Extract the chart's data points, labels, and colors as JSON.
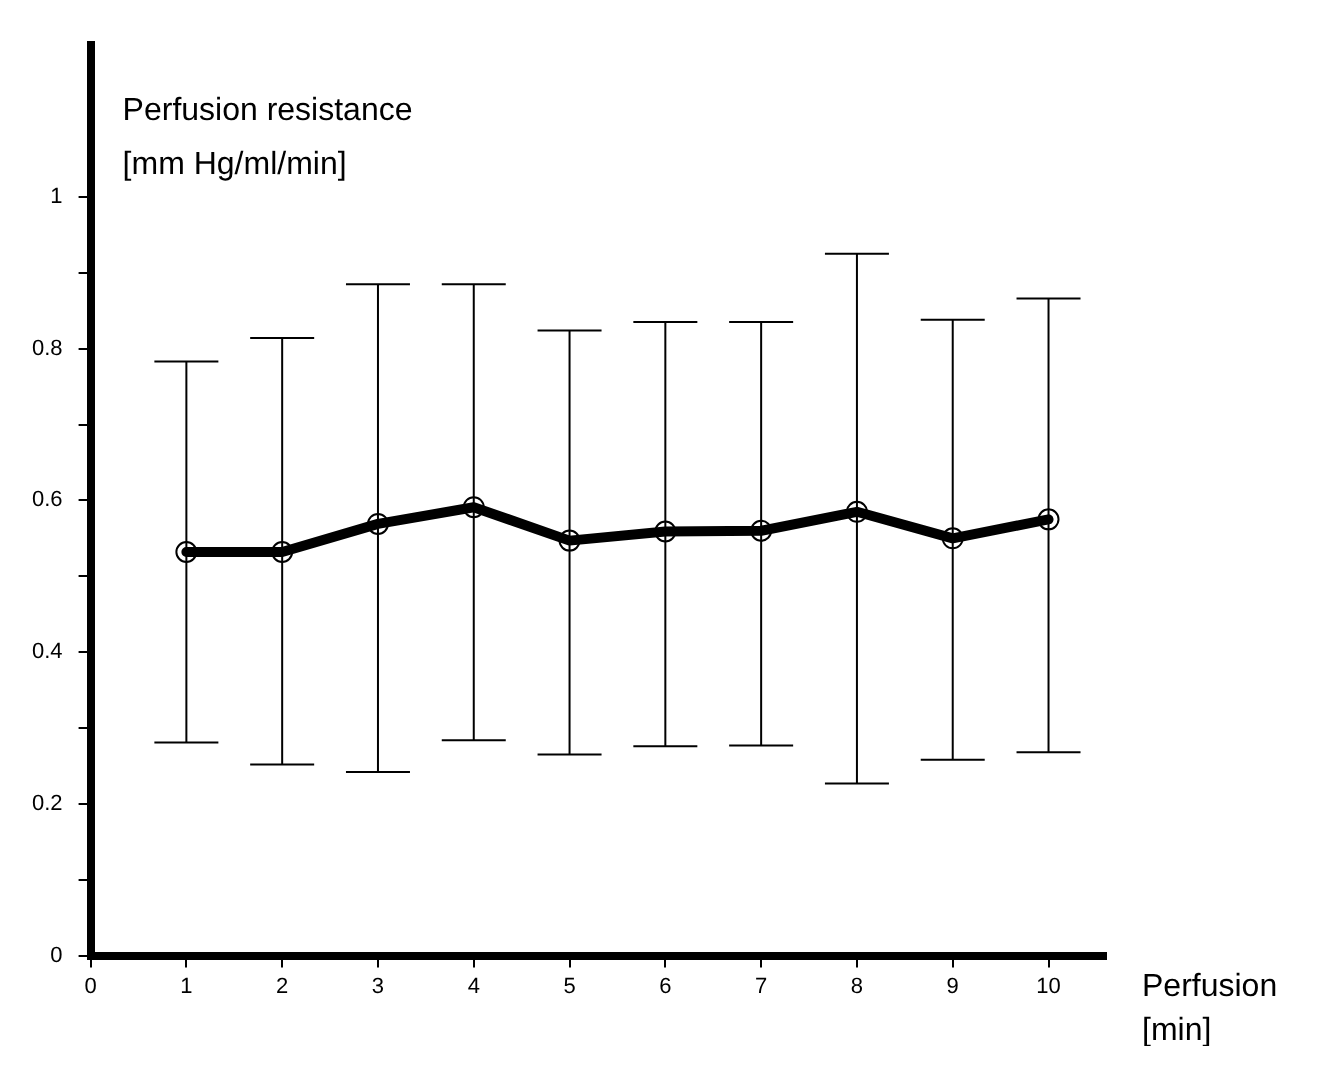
{
  "chart_data": {
    "type": "line",
    "xlabel": "Perfusion\n[min]",
    "ylabel": "Perfusion resistance\n[mm Hg/ml/min]",
    "x": [
      1,
      2,
      3,
      4,
      5,
      6,
      7,
      8,
      9,
      10
    ],
    "series": [
      {
        "color": "#000000",
        "values": [
          0.532,
          0.532,
          0.569,
          0.591,
          0.547,
          0.559,
          0.56,
          0.585,
          0.55,
          0.575
        ],
        "errors": [
          [
            0.281,
            0.783
          ],
          [
            0.252,
            0.814
          ],
          [
            0.242,
            0.885
          ],
          [
            0.284,
            0.885
          ],
          [
            0.265,
            0.824
          ],
          [
            0.276,
            0.835
          ],
          [
            0.277,
            0.835
          ],
          [
            0.227,
            0.925
          ],
          [
            0.258,
            0.838
          ],
          [
            0.268,
            0.866
          ]
        ]
      }
    ],
    "xlim": [
      0,
      10.6
    ],
    "xticks": [
      0,
      1,
      2,
      3,
      4,
      5,
      6,
      7,
      8,
      9,
      10
    ],
    "ylim": [
      0,
      1.2
    ],
    "yticks": [
      0,
      {
        "value": 0.1,
        "label": null
      },
      0.2,
      {
        "value": 0.3,
        "label": null
      },
      0.4,
      {
        "value": 0.5,
        "label": null
      },
      0.6,
      {
        "value": 0.7,
        "label": null
      },
      0.8,
      {
        "value": 0.9,
        "label": null
      },
      1
    ],
    "grid": false,
    "legend": false,
    "marker": "circle",
    "line_style": "solid"
  }
}
